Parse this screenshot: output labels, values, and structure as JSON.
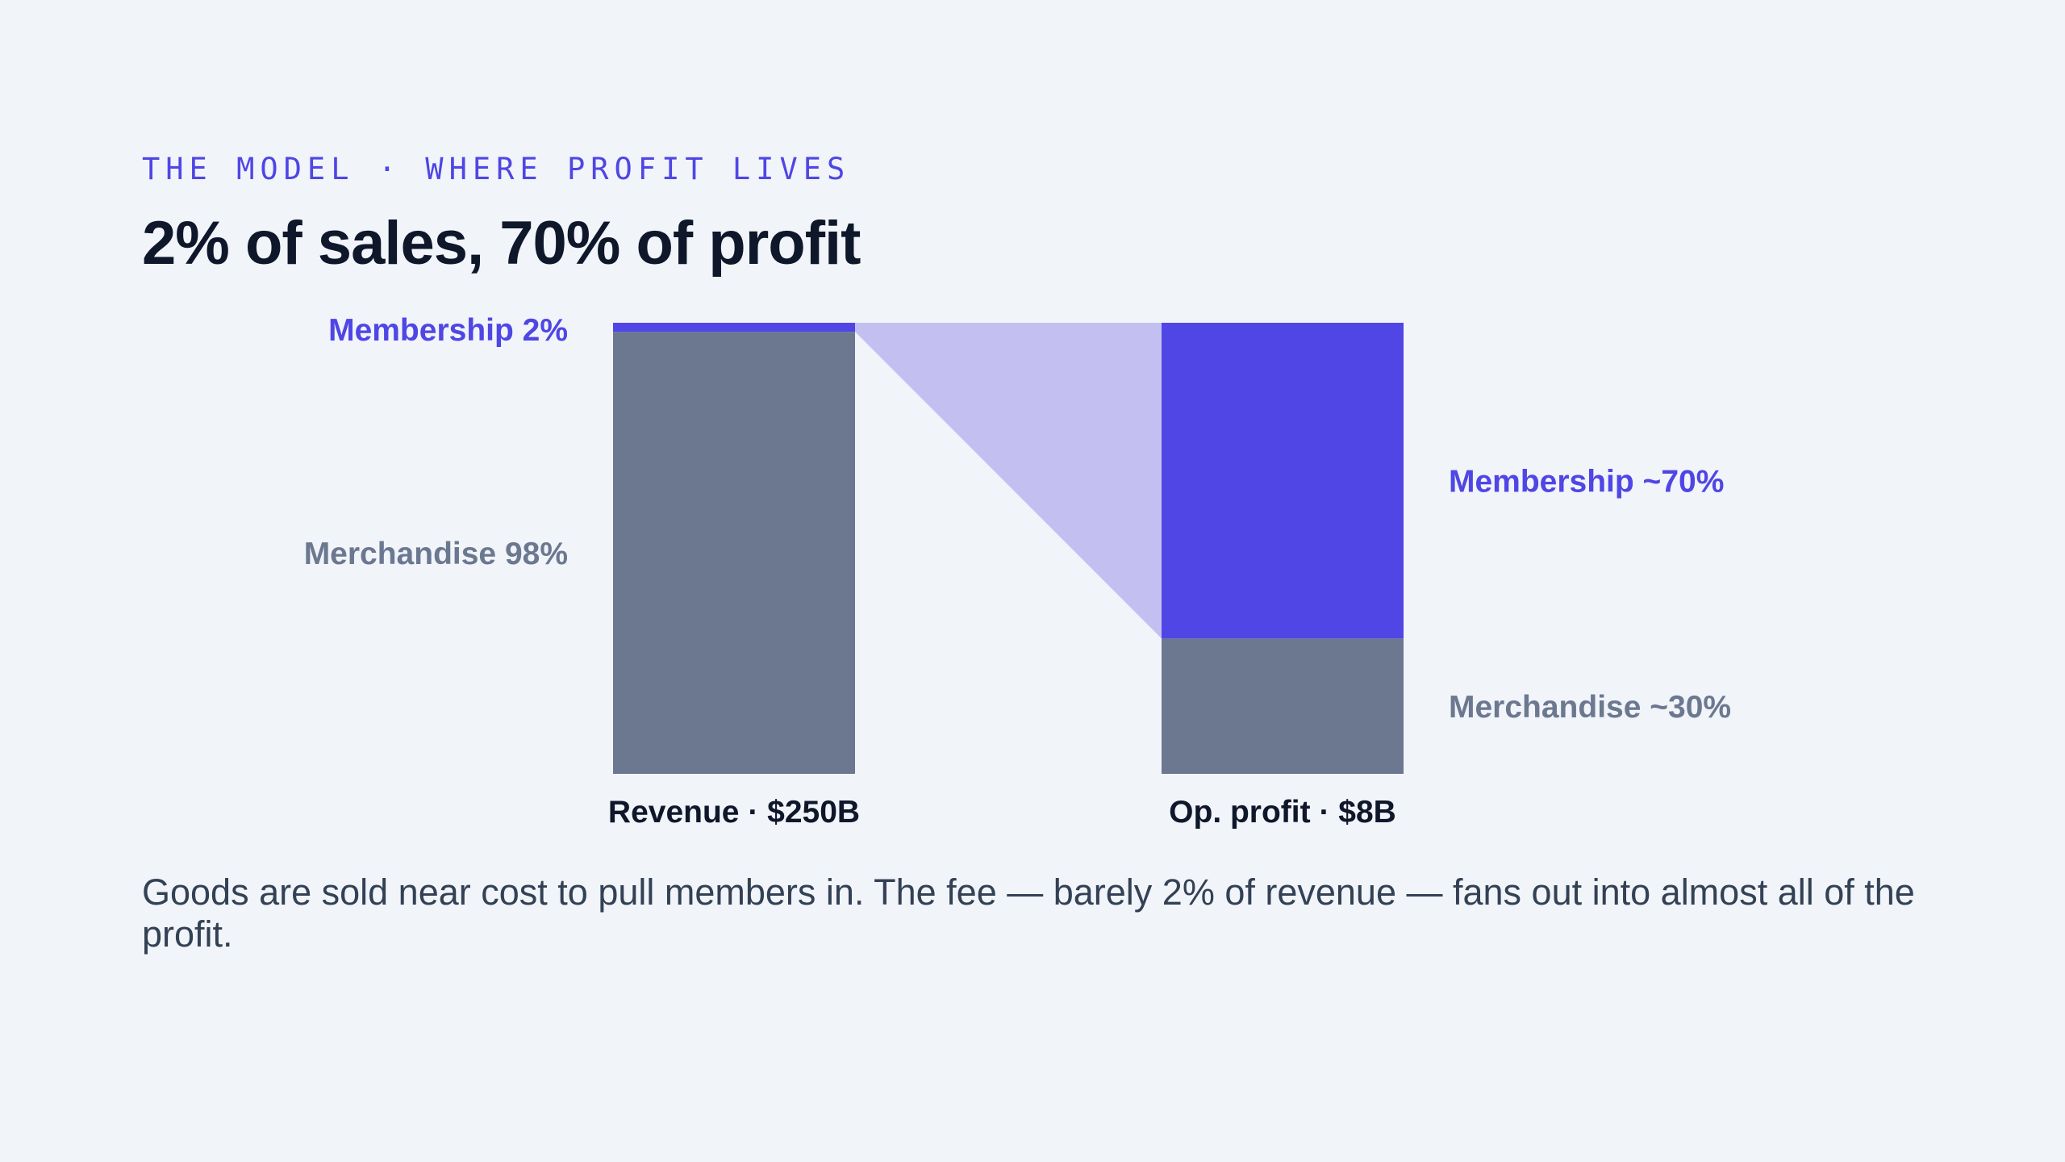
{
  "header": {
    "kicker": "THE MODEL · WHERE PROFIT LIVES",
    "title": "2% of sales, 70% of profit"
  },
  "caption": "Goods are sold near cost to pull members in. The fee — barely 2% of revenue — fans out into almost all of the profit.",
  "colors": {
    "membership": "#4f46e5",
    "merchandise": "#6b7890",
    "flow": "#c3c0f1",
    "axis_label": "#0f172a"
  },
  "chart_data": {
    "type": "bar",
    "stacked": true,
    "normalized": true,
    "categories": [
      "Revenue · $250B",
      "Op. profit · $8B"
    ],
    "series": [
      {
        "name": "Membership",
        "values": [
          2,
          70
        ],
        "labels": [
          "Membership 2%",
          "Membership ~70%"
        ]
      },
      {
        "name": "Merchandise",
        "values": [
          98,
          30
        ],
        "labels": [
          "Merchandise 98%",
          "Merchandise ~30%"
        ]
      }
    ],
    "flow": {
      "from_series": "Membership",
      "from": "Revenue · $250B",
      "to": "Op. profit · $8B"
    },
    "ylim": [
      0,
      100
    ],
    "grid": false,
    "legend": "none"
  }
}
